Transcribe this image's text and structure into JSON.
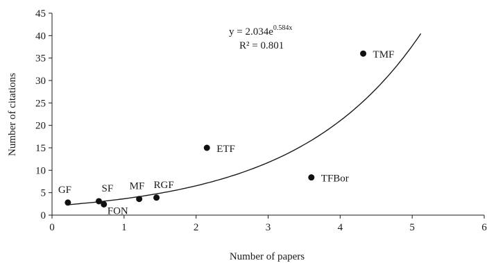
{
  "chart_data": {
    "type": "scatter",
    "xlabel": "Number of papers",
    "ylabel": "Number of citations",
    "xlim": [
      0,
      6
    ],
    "ylim": [
      0,
      45
    ],
    "xticks": [
      "0",
      "1",
      "2",
      "3",
      "4",
      "5",
      "6"
    ],
    "yticks": [
      "0",
      "5",
      "10",
      "15",
      "20",
      "25",
      "30",
      "35",
      "40",
      "45"
    ],
    "grid": false,
    "points": [
      {
        "label": "GF",
        "x": 0.22,
        "y": 2.8
      },
      {
        "label": "SF",
        "x": 0.65,
        "y": 3.1
      },
      {
        "label": "FON",
        "x": 0.72,
        "y": 2.4
      },
      {
        "label": "MF",
        "x": 1.21,
        "y": 3.6
      },
      {
        "label": "RGF",
        "x": 1.45,
        "y": 3.9
      },
      {
        "label": "ETF",
        "x": 2.15,
        "y": 15.0
      },
      {
        "label": "TFBor",
        "x": 3.6,
        "y": 8.4
      },
      {
        "label": "TMF",
        "x": 4.32,
        "y": 36.0
      }
    ],
    "trendline": {
      "type": "exponential",
      "a": 2.034,
      "b": 0.584,
      "x_range": [
        0.22,
        5.12
      ],
      "equation_base": "y = 2.034e",
      "equation_exp": "0.584x",
      "r_squared": "R² = 0.801"
    }
  }
}
